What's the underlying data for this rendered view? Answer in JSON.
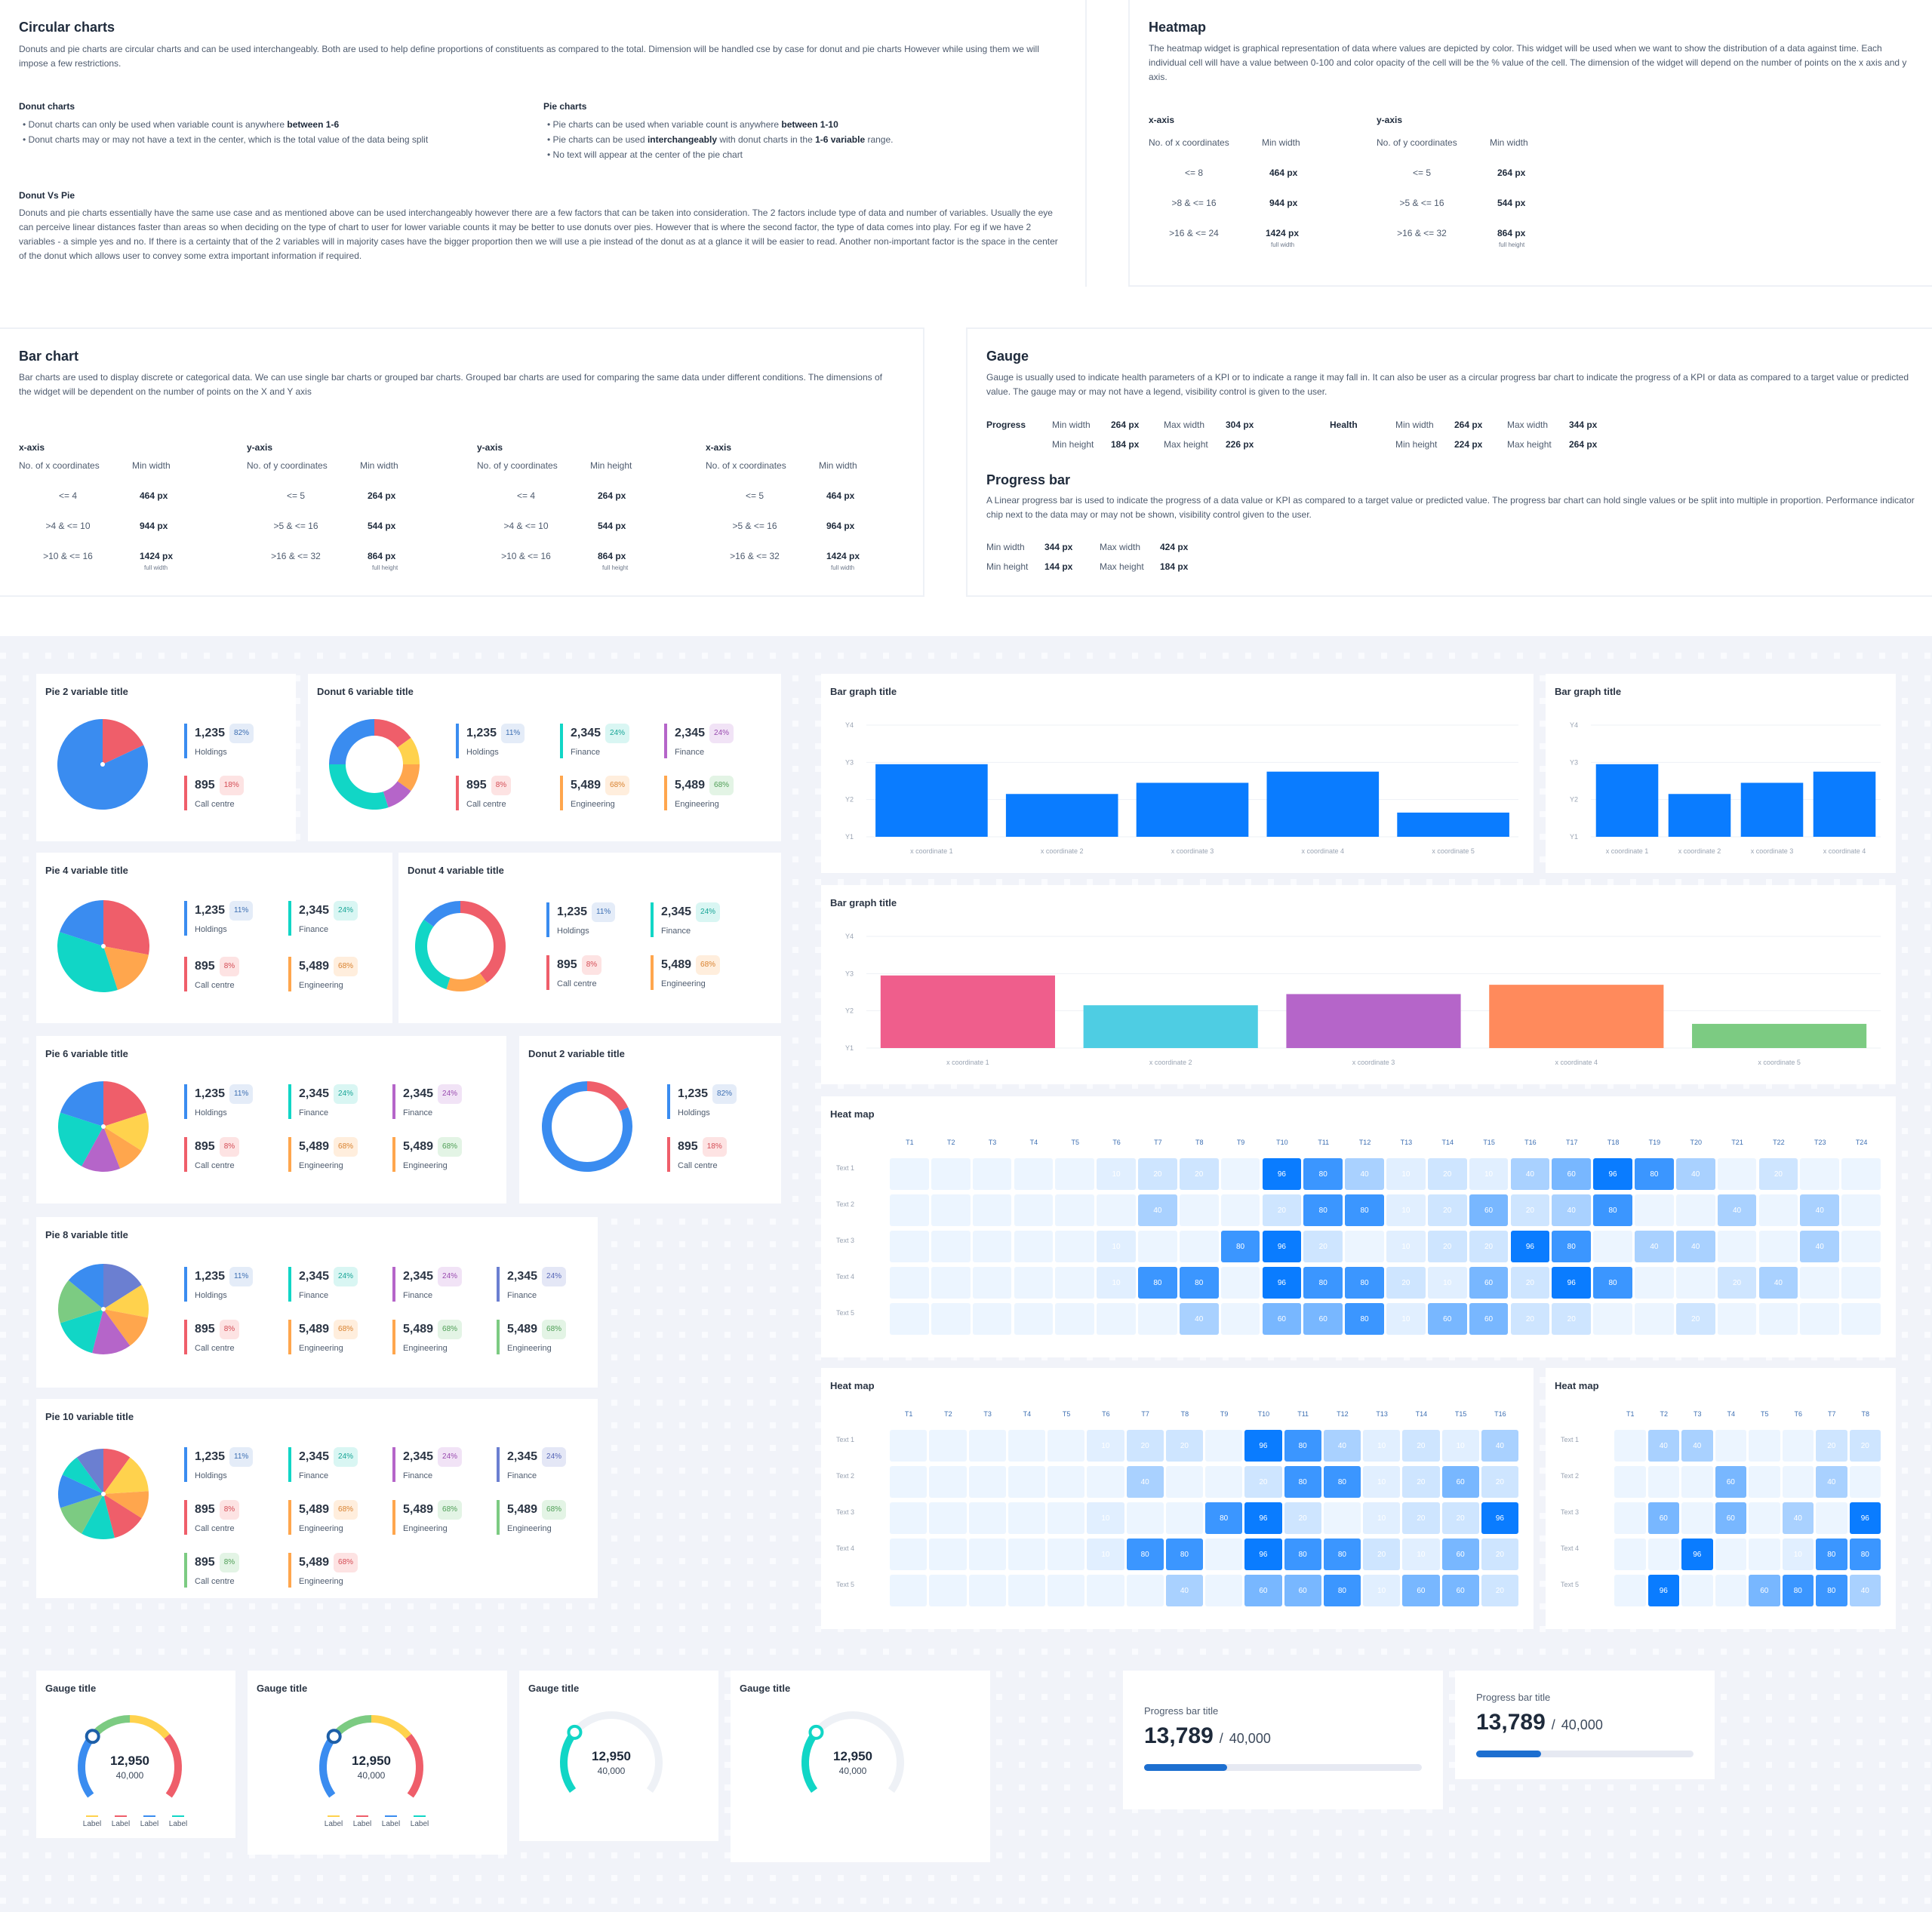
{
  "circular": {
    "title": "Circular charts",
    "intro": "Donuts and pie charts are circular charts and can be used interchangeably. Both are used to help define proportions of constituents as compared to the total. Dimension will be handled cse by case for donut and pie charts However while using them we will impose a few restrictions.",
    "donut_head": "Donut charts",
    "donut_b1": "Donut charts can only be used when variable count is anywhere ",
    "donut_b1b": "between 1-6",
    "donut_b2": "Donut charts may or may not have a text in the center, which is the total value of the data being split",
    "pie_head": "Pie charts",
    "pie_b1": "Pie charts can be used when variable count is anywhere ",
    "pie_b1b": "between 1-10",
    "pie_b2a": "Pie charts can be used ",
    "pie_b2b": "interchangeably",
    "pie_b2c": " with donut charts in the ",
    "pie_b2d": "1-6 variable",
    "pie_b2e": " range.",
    "pie_b3": "No text will appear at the center of the pie chart",
    "vs_head": "Donut Vs Pie",
    "vs_body": "Donuts and pie charts essentially have the same use case and as mentioned above can be used interchangeably however there are a few factors that can be taken into consideration. The 2 factors include type of data and number of variables. Usually the eye can perceive linear distances faster than areas so when deciding on the type of chart to user for lower variable counts it may be better to use donuts over pies. However that is where the second factor, the type of data comes into play. For eg if we have 2 variables - a simple yes and no. If there is a certainty that of the 2 variables will in majority cases have the bigger proportion then we will use a pie instead of the donut as at a glance it will be easier to read. Another non-important factor is the space in the center of the donut which allows user to convey some extra important information if required."
  },
  "heatmap_doc": {
    "title": "Heatmap",
    "body": "The heatmap widget is graphical representation of data where values are depicted by color. This widget will be used when we want to show the distribution of a data against time. Each individual cell will have a value between 0-100 and color opacity of the cell will be the % value of the cell. The dimension of the widget will depend on the number of points on the x axis and y axis.",
    "x_head": "x-axis",
    "x_sub1": "No. of  x coordinates",
    "x_sub2": "Min width",
    "x_rows": [
      [
        "<= 8",
        "464 px"
      ],
      [
        ">8   &   <= 16",
        "944 px"
      ],
      [
        ">16   &   <= 24",
        "1424 px"
      ]
    ],
    "y_head": "y-axis",
    "y_sub1": "No. of  y coordinates",
    "y_sub2": "Min width",
    "y_rows": [
      [
        "<= 5",
        "264 px"
      ],
      [
        ">5   &   <= 16",
        "544 px"
      ],
      [
        ">16   &   <= 32",
        "864 px"
      ]
    ],
    "full_width": "full width",
    "full_height": "full height"
  },
  "bar_doc": {
    "title": "Bar chart",
    "body": "Bar charts are used to display discrete or categorical data. We can use single bar charts or grouped bar charts. Grouped bar charts are used for comparing the same data under different conditions. The dimensions of the widget will be dependent on the number of points on the X and Y axis",
    "cols": [
      {
        "head": "x-axis",
        "sub1": "No. of  x coordinates",
        "sub2": "Min width",
        "rows": [
          [
            "<= 4",
            "464 px"
          ],
          [
            ">4   &   <= 10",
            "944 px"
          ],
          [
            ">10   &   <= 16",
            "1424 px"
          ]
        ],
        "note": "full width"
      },
      {
        "head": "y-axis",
        "sub1": "No. of  y coordinates",
        "sub2": "Min width",
        "rows": [
          [
            "<= 5",
            "264 px"
          ],
          [
            ">5   &   <= 16",
            "544 px"
          ],
          [
            ">16   &   <= 32",
            "864 px"
          ]
        ],
        "note": "full height"
      },
      {
        "head": "y-axis",
        "sub1": "No. of  y coordinates",
        "sub2": "Min height",
        "rows": [
          [
            "<= 4",
            "264 px"
          ],
          [
            ">4   &   <= 10",
            "544 px"
          ],
          [
            ">10   &   <= 16",
            "864 px"
          ]
        ],
        "note": "full height"
      },
      {
        "head": "x-axis",
        "sub1": "No. of  x coordinates",
        "sub2": "Min width",
        "rows": [
          [
            "<= 5",
            "464 px"
          ],
          [
            ">5   &   <= 16",
            "964 px"
          ],
          [
            ">16   &   <= 32",
            "1424 px"
          ]
        ],
        "note": "full width"
      }
    ]
  },
  "gauge_doc": {
    "title": "Gauge",
    "body": "Gauge is usually used to indicate health parameters of a KPI or to indicate a range it may fall in. It can also be user as a circular progress bar chart to indicate the progress of a KPI or data as compared to a target value or predicted value. The gauge may or may not have a legend, visibility control is given to the user.",
    "progress": "Progress",
    "health": "Health",
    "min_width": "Min width",
    "max_width": "Max width",
    "min_height": "Min height",
    "max_height": "Max height",
    "p_minw": "264 px",
    "p_maxw": "304 px",
    "p_minh": "184 px",
    "p_maxh": "226 px",
    "h_minw": "264 px",
    "h_maxw": "344 px",
    "h_minh": "224 px",
    "h_maxh": "264 px"
  },
  "progress_doc": {
    "title": "Progress bar",
    "body": "A Linear progress bar is used to indicate the progress of a data value or KPI as compared to a target value or predicted value. The progress bar chart can hold single values or be split into multiple in proportion.  Performance indicator chip next to the data may or may not be shown, visibility control given to the user.",
    "min_width": "Min width",
    "min_width_v": "344 px",
    "max_width": "Max width",
    "max_width_v": "424 px",
    "min_height": "Min height",
    "min_height_v": "144 px",
    "max_height": "Max height",
    "max_height_v": "184 px"
  },
  "stats": {
    "holdings": {
      "num": "1,235",
      "label": "Holdings",
      "pct11": "11%",
      "pct82": "82%"
    },
    "callcentre": {
      "num": "895",
      "label": "Call centre",
      "pct8": "8%",
      "pct18": "18%"
    },
    "finance": {
      "num": "2,345",
      "label": "Finance",
      "pct": "24%"
    },
    "engineering": {
      "num": "5,489",
      "label": "Engineering",
      "pct": "68%"
    }
  },
  "cards": {
    "pie2": "Pie 2 variable title",
    "donut6": "Donut 6 variable title",
    "pie4": "Pie 4 variable title",
    "donut4": "Donut 4 variable title",
    "pie6": "Pie 6 variable title",
    "donut2": "Donut 2 variable title",
    "pie8": "Pie 8 variable title",
    "pie10": "Pie 10 variable title",
    "bar": "Bar graph title",
    "heat": "Heat map",
    "gauge": "Gauge title",
    "progress": "Progress bar title"
  },
  "bar_axis": {
    "y": [
      "Y4",
      "Y3",
      "Y2",
      "Y1"
    ],
    "x5": [
      "x coordinate 1",
      "x coordinate 2",
      "x coordinate 3",
      "x coordinate 4",
      "x coordinate 5"
    ]
  },
  "chart_data": [
    {
      "type": "bar",
      "title": "Bar graph title",
      "categories": [
        "x coordinate 1",
        "x coordinate 2",
        "x coordinate 3",
        "x coordinate 4",
        "x coordinate 5"
      ],
      "values": [
        2.95,
        2.15,
        2.45,
        2.75,
        1.65
      ],
      "ylim": [
        1,
        4
      ],
      "color": "#0a7cff"
    },
    {
      "type": "bar",
      "title": "Bar graph title",
      "categories": [
        "x coordinate 1",
        "x coordinate 2",
        "x coordinate 3",
        "x coordinate 4"
      ],
      "values": [
        2.95,
        2.15,
        2.45,
        2.75
      ],
      "ylim": [
        1,
        4
      ],
      "color": "#0a7cff"
    },
    {
      "type": "bar",
      "title": "Bar graph title",
      "categories": [
        "x coordinate 1",
        "x coordinate 2",
        "x coordinate 3",
        "x coordinate 4",
        "x coordinate 5"
      ],
      "values": [
        2.95,
        2.15,
        2.45,
        2.7,
        1.65
      ],
      "ylim": [
        1,
        4
      ],
      "colors": [
        "#ef5e8c",
        "#4ecde3",
        "#b565c9",
        "#ff8a5c",
        "#7ccb82"
      ]
    }
  ],
  "heatmap": {
    "rows": [
      "Text 1",
      "Text 2",
      "Text 3",
      "Text 4",
      "Text 5"
    ],
    "big": [
      [
        0,
        0,
        0,
        0,
        0,
        10,
        20,
        20,
        0,
        96,
        80,
        40,
        10,
        20,
        10,
        40,
        60,
        96,
        80,
        40,
        0,
        20,
        0,
        0
      ],
      [
        0,
        0,
        0,
        0,
        0,
        0,
        40,
        0,
        0,
        20,
        80,
        80,
        10,
        20,
        60,
        20,
        40,
        80,
        0,
        0,
        40,
        0,
        40,
        0
      ],
      [
        0,
        0,
        0,
        0,
        0,
        10,
        0,
        0,
        80,
        96,
        20,
        0,
        10,
        20,
        20,
        96,
        80,
        0,
        40,
        40,
        0,
        0,
        40,
        0
      ],
      [
        0,
        0,
        0,
        0,
        0,
        10,
        80,
        80,
        0,
        96,
        80,
        80,
        20,
        10,
        60,
        20,
        96,
        80,
        0,
        0,
        20,
        40,
        0,
        0
      ],
      [
        0,
        0,
        0,
        0,
        0,
        0,
        0,
        40,
        0,
        60,
        60,
        80,
        10,
        60,
        60,
        20,
        20,
        0,
        0,
        20,
        0,
        0,
        0,
        0
      ]
    ],
    "mid": [
      [
        0,
        0,
        0,
        0,
        0,
        10,
        20,
        20,
        0,
        96,
        80,
        40,
        10,
        20,
        10,
        40
      ],
      [
        0,
        0,
        0,
        0,
        0,
        0,
        40,
        0,
        0,
        20,
        80,
        80,
        10,
        20,
        60,
        20
      ],
      [
        0,
        0,
        0,
        0,
        0,
        10,
        0,
        0,
        80,
        96,
        20,
        0,
        10,
        20,
        20,
        96
      ],
      [
        0,
        0,
        0,
        0,
        0,
        10,
        80,
        80,
        0,
        96,
        80,
        80,
        20,
        10,
        60,
        20
      ],
      [
        0,
        0,
        0,
        0,
        0,
        0,
        0,
        40,
        0,
        60,
        60,
        80,
        10,
        60,
        60,
        20
      ]
    ],
    "small": [
      [
        0,
        40,
        40,
        0,
        0,
        0,
        20,
        20
      ],
      [
        0,
        0,
        0,
        60,
        0,
        0,
        40,
        0
      ],
      [
        0,
        60,
        0,
        60,
        0,
        40,
        0,
        96
      ],
      [
        0,
        0,
        96,
        0,
        0,
        10,
        80,
        80
      ],
      [
        0,
        96,
        0,
        0,
        60,
        80,
        80,
        40
      ]
    ]
  },
  "gauges": [
    {
      "value": "12,950",
      "target": "40,000",
      "fraction": 0.3
    },
    {
      "value": "12,950",
      "target": "40,000",
      "fraction": 0.3
    },
    {
      "value": "12,950",
      "target": "40,000",
      "fraction": 0.3
    },
    {
      "value": "12,950",
      "target": "40,000",
      "fraction": 0.3
    }
  ],
  "gauge_legend": [
    "Label",
    "Label",
    "Label",
    "Label"
  ],
  "progress": [
    {
      "value": "13,789",
      "sep": "/",
      "target": "40,000",
      "fraction": 0.3
    },
    {
      "value": "13,789",
      "sep": "/",
      "target": "40,000",
      "fraction": 0.3
    }
  ],
  "colors": {
    "blue": "#0a7cff",
    "holdings": "#3a8cf0",
    "callcentre": "#ef5e6a",
    "finance": "#11d6c6",
    "engineering": "#ffa64d",
    "purple": "#b565c9",
    "indigo": "#6b7fd1",
    "green": "#7ccb82"
  }
}
